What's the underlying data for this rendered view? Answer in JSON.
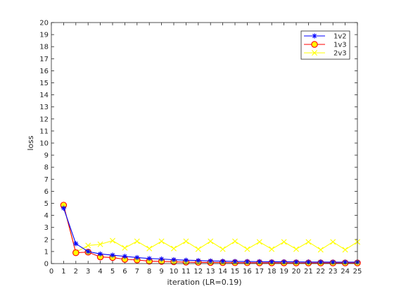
{
  "chart_data": {
    "type": "line",
    "title": "",
    "xlabel": "iteration (LR=0.19)",
    "ylabel": "loss",
    "xlim": [
      0,
      25
    ],
    "ylim": [
      0,
      20
    ],
    "xticks": [
      0,
      1,
      2,
      3,
      4,
      5,
      6,
      7,
      8,
      9,
      10,
      11,
      12,
      13,
      14,
      15,
      16,
      17,
      18,
      19,
      20,
      21,
      22,
      23,
      24,
      25
    ],
    "yticks": [
      0,
      1,
      2,
      3,
      4,
      5,
      6,
      7,
      8,
      9,
      10,
      11,
      12,
      13,
      14,
      15,
      16,
      17,
      18,
      19,
      20
    ],
    "grid": false,
    "legend_position": "top-right",
    "x": [
      1,
      2,
      3,
      4,
      5,
      6,
      7,
      8,
      9,
      10,
      11,
      12,
      13,
      14,
      15,
      16,
      17,
      18,
      19,
      20,
      21,
      22,
      23,
      24,
      25
    ],
    "series": [
      {
        "name": "1v2",
        "color": "#0000ff",
        "marker": "asterisk",
        "values": [
          4.6,
          1.65,
          1.0,
          0.8,
          0.7,
          0.6,
          0.5,
          0.42,
          0.38,
          0.32,
          0.28,
          0.25,
          0.22,
          0.2,
          0.18,
          0.17,
          0.16,
          0.15,
          0.15,
          0.14,
          0.13,
          0.13,
          0.12,
          0.12,
          0.12
        ]
      },
      {
        "name": "1v3",
        "color": "#ff0000",
        "marker": "circle",
        "values": [
          4.85,
          0.9,
          0.95,
          0.55,
          0.5,
          0.35,
          0.3,
          0.2,
          0.18,
          0.15,
          0.12,
          0.1,
          0.09,
          0.08,
          0.07,
          0.07,
          0.06,
          0.06,
          0.06,
          0.05,
          0.05,
          0.05,
          0.05,
          0.05,
          0.05
        ]
      },
      {
        "name": "2v3",
        "color": "#ffff00",
        "marker": "x",
        "values": [
          4.8,
          0.95,
          1.5,
          1.6,
          1.9,
          1.3,
          1.85,
          1.25,
          1.85,
          1.25,
          1.85,
          1.2,
          1.85,
          1.2,
          1.85,
          1.2,
          1.8,
          1.2,
          1.8,
          1.2,
          1.8,
          1.15,
          1.8,
          1.15,
          1.8
        ]
      }
    ]
  }
}
